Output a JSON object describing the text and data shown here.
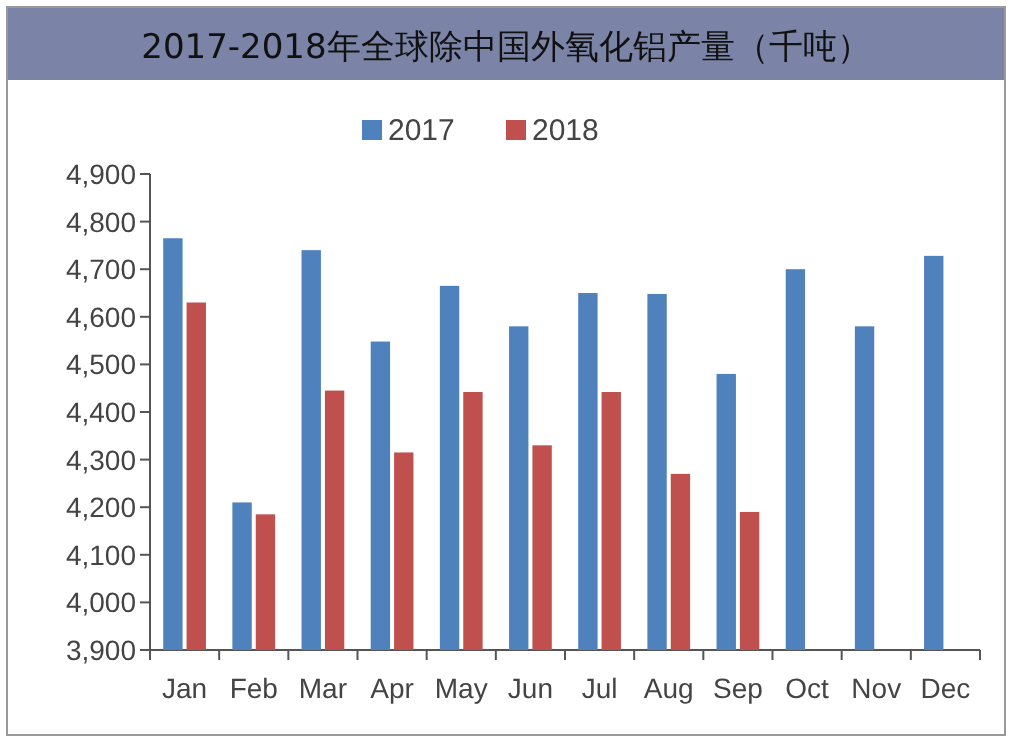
{
  "chart_data": {
    "type": "bar",
    "title": "2017-2018年全球除中国外氧化铝产量（千吨）",
    "categories": [
      "Jan",
      "Feb",
      "Mar",
      "Apr",
      "May",
      "Jun",
      "Jul",
      "Aug",
      "Sep",
      "Oct",
      "Nov",
      "Dec"
    ],
    "series": [
      {
        "name": "2017",
        "color": "#4f81bd",
        "values": [
          4765,
          4210,
          4740,
          4548,
          4665,
          4580,
          4650,
          4648,
          4480,
          4700,
          4580,
          4728
        ]
      },
      {
        "name": "2018",
        "color": "#c0504d",
        "values": [
          4630,
          4185,
          4445,
          4315,
          4442,
          4330,
          4442,
          4270,
          4190,
          null,
          null,
          null
        ]
      }
    ],
    "ylim": [
      3900,
      4900
    ],
    "yticks": [
      {
        "value": 3900,
        "label": "3,900"
      },
      {
        "value": 4000,
        "label": "4,000"
      },
      {
        "value": 4100,
        "label": "4,100"
      },
      {
        "value": 4200,
        "label": "4,200"
      },
      {
        "value": 4300,
        "label": "4,300"
      },
      {
        "value": 4400,
        "label": "4,400"
      },
      {
        "value": 4500,
        "label": "4,500"
      },
      {
        "value": 4600,
        "label": "4,600"
      },
      {
        "value": 4700,
        "label": "4,700"
      },
      {
        "value": 4800,
        "label": "4,800"
      },
      {
        "value": 4900,
        "label": "4,900"
      }
    ],
    "legend": "top"
  }
}
